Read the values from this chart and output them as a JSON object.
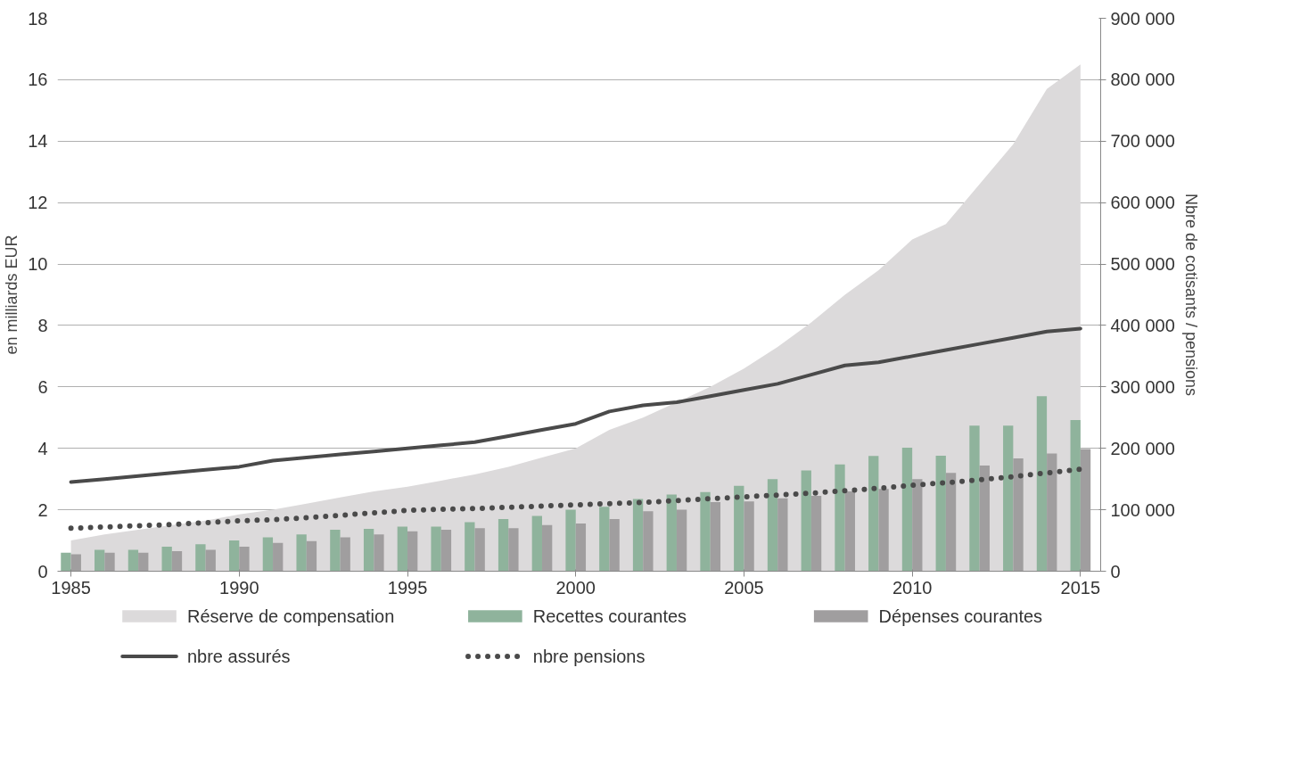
{
  "chart_data": {
    "type": "bar",
    "ylabel": "en milliards EUR",
    "y2label": "Nbre de cotisants / pensions",
    "x": [
      1985,
      1986,
      1987,
      1988,
      1989,
      1990,
      1991,
      1992,
      1993,
      1994,
      1995,
      1996,
      1997,
      1998,
      1999,
      2000,
      2001,
      2002,
      2003,
      2004,
      2005,
      2006,
      2007,
      2008,
      2009,
      2010,
      2011,
      2012,
      2013,
      2014,
      2015
    ],
    "xlim": [
      1984.6,
      2015.6
    ],
    "xticks": [
      1985,
      1990,
      1995,
      2000,
      2005,
      2010,
      2015
    ],
    "ylim": [
      0,
      18
    ],
    "yticks": [
      0,
      2,
      4,
      6,
      8,
      10,
      12,
      14,
      16,
      18
    ],
    "y2lim": [
      0,
      900000
    ],
    "y2ticks": [
      {
        "value": 0,
        "label": "0"
      },
      {
        "value": 100000,
        "label": "100 000"
      },
      {
        "value": 200000,
        "label": "200 000"
      },
      {
        "value": 300000,
        "label": "300 000"
      },
      {
        "value": 400000,
        "label": "400 000"
      },
      {
        "value": 500000,
        "label": "500 000"
      },
      {
        "value": 600000,
        "label": "600 000"
      },
      {
        "value": 700000,
        "label": "700 000"
      },
      {
        "value": 800000,
        "label": "800 000"
      },
      {
        "value": 900000,
        "label": "900 000"
      }
    ],
    "grid": "y",
    "legend": "bottom",
    "series": [
      {
        "name": "Réserve de compensation",
        "type": "area",
        "color": "#dcdadb",
        "values": [
          1.0,
          1.2,
          1.35,
          1.5,
          1.65,
          1.85,
          2.0,
          2.2,
          2.4,
          2.6,
          2.75,
          2.95,
          3.15,
          3.4,
          3.7,
          4.0,
          4.6,
          5.0,
          5.5,
          6.0,
          6.6,
          7.3,
          8.1,
          9.0,
          9.8,
          10.8,
          11.3,
          12.6,
          13.9,
          15.7,
          16.5
        ]
      },
      {
        "name": "Recettes courantes",
        "color": "#8fb39c",
        "values": [
          0.6,
          0.7,
          0.7,
          0.8,
          0.88,
          1.0,
          1.1,
          1.2,
          1.35,
          1.38,
          1.45,
          1.45,
          1.6,
          1.7,
          1.8,
          2.0,
          2.1,
          2.35,
          2.5,
          2.58,
          2.78,
          3.0,
          3.28,
          3.48,
          3.75,
          4.02,
          3.76,
          4.74,
          4.74,
          5.7,
          4.92
        ]
      },
      {
        "name": "Dépenses courantes",
        "color": "#a09e9f",
        "values": [
          0.55,
          0.6,
          0.6,
          0.65,
          0.7,
          0.8,
          0.92,
          0.98,
          1.1,
          1.2,
          1.3,
          1.35,
          1.4,
          1.4,
          1.5,
          1.55,
          1.7,
          1.95,
          2.0,
          2.25,
          2.27,
          2.37,
          2.45,
          2.6,
          2.68,
          3.0,
          3.2,
          3.44,
          3.67,
          3.83,
          3.98
        ]
      },
      {
        "name": "nbre assurés",
        "type": "line",
        "axis": "y2",
        "line_style": "solid",
        "color": "#4a4a4a",
        "values": [
          145000,
          150000,
          155000,
          160000,
          165000,
          170000,
          180000,
          185000,
          190000,
          195000,
          200000,
          205000,
          210000,
          220000,
          230000,
          240000,
          260000,
          270000,
          275000,
          285000,
          295000,
          305000,
          320000,
          335000,
          340000,
          350000,
          360000,
          370000,
          380000,
          390000,
          395000
        ]
      },
      {
        "name": "nbre pensions",
        "type": "line",
        "axis": "y2",
        "line_style": "dotted",
        "color": "#4a4a4a",
        "values": [
          70000,
          72000,
          74000,
          76000,
          79000,
          82000,
          84000,
          87000,
          91000,
          95000,
          99000,
          101000,
          102000,
          104000,
          106000,
          108000,
          110000,
          112000,
          115000,
          118000,
          121000,
          124000,
          127000,
          131000,
          135000,
          140000,
          144000,
          149000,
          154000,
          160000,
          166000
        ]
      }
    ]
  }
}
